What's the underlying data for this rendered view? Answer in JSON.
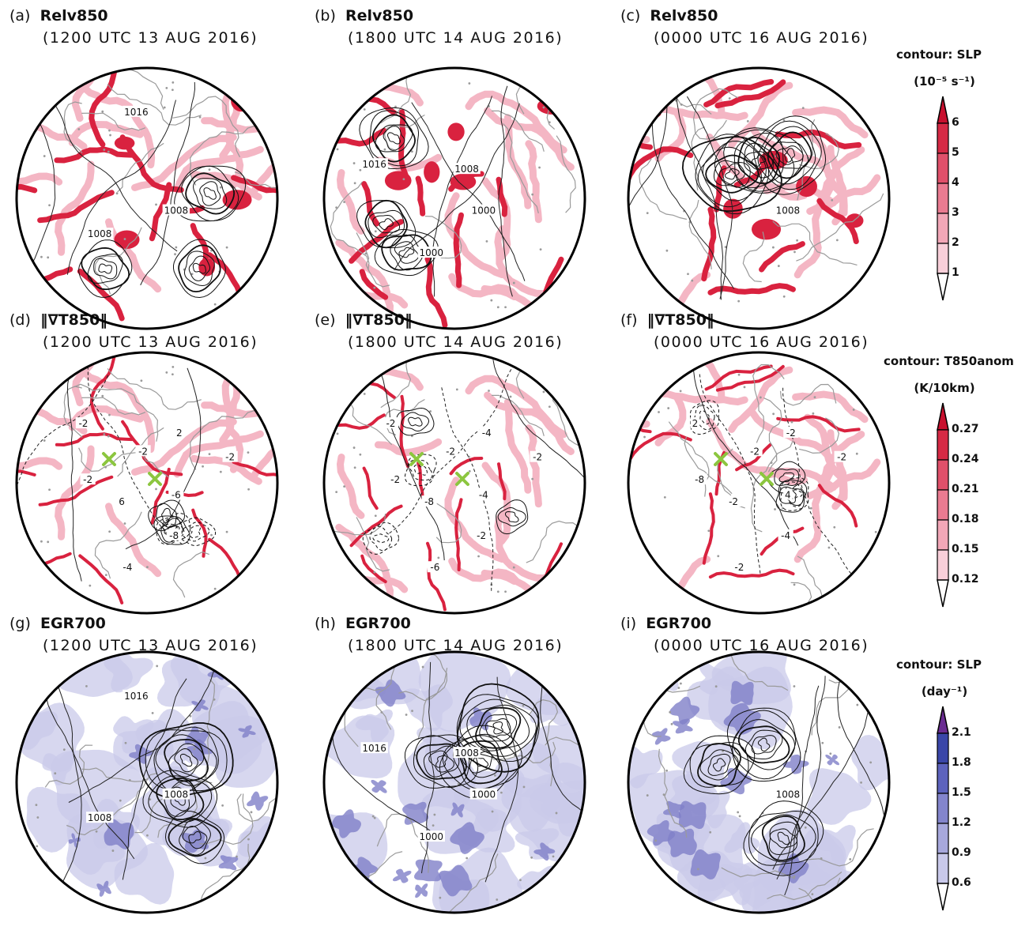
{
  "panels": [
    {
      "letter": "(a)",
      "variable": "Relv850",
      "time": "(1200 UTC 13 AUG 2016)",
      "kind": "relv",
      "labels": [
        "1008",
        "1008",
        "1016"
      ]
    },
    {
      "letter": "(b)",
      "variable": "Relv850",
      "time": "(1800 UTC 14 AUG 2016)",
      "kind": "relv",
      "labels": [
        "1000",
        "1000",
        "1016",
        "1008"
      ]
    },
    {
      "letter": "(c)",
      "variable": "Relv850",
      "time": "(0000 UTC 16 AUG 2016)",
      "kind": "relv",
      "labels": [
        "1008"
      ]
    },
    {
      "letter": "(d)",
      "variable": "‖∇T850‖",
      "time": "(1200 UTC 13 AUG 2016)",
      "kind": "grad",
      "labels": [
        "-6",
        "-8",
        "-4",
        "6",
        "-2",
        "-2",
        "-2",
        "2",
        "-2"
      ]
    },
    {
      "letter": "(e)",
      "variable": "‖∇T850‖",
      "time": "(1800 UTC 14 AUG 2016)",
      "kind": "grad",
      "labels": [
        "-4",
        "-2",
        "-6",
        "-8",
        "-2",
        "-2",
        "-2",
        "-4",
        "-2"
      ]
    },
    {
      "letter": "(f)",
      "variable": "‖∇T850‖",
      "time": "(0000 UTC 16 AUG 2016)",
      "kind": "grad",
      "labels": [
        "4",
        "-4",
        "-2",
        "-2",
        "-8",
        "2",
        "-2",
        "-2",
        "-2"
      ]
    },
    {
      "letter": "(g)",
      "variable": "EGR700",
      "time": "(1200 UTC 13 AUG 2016)",
      "kind": "egr",
      "labels": [
        "1008",
        "1008",
        "1016"
      ]
    },
    {
      "letter": "(h)",
      "variable": "EGR700",
      "time": "(1800 UTC 14 AUG 2016)",
      "kind": "egr",
      "labels": [
        "1000",
        "1000",
        "1016",
        "1008"
      ]
    },
    {
      "letter": "(i)",
      "variable": "EGR700",
      "time": "(0000 UTC 16 AUG 2016)",
      "kind": "egr",
      "labels": [
        "1008"
      ]
    }
  ],
  "colorbars": [
    {
      "contour_label": "contour: SLP",
      "unit": "(10⁻⁵ s⁻¹)",
      "ticks": [
        "6",
        "5",
        "4",
        "3",
        "2",
        "1"
      ],
      "colors": [
        "#c8102e",
        "#d62a45",
        "#e0506a",
        "#ea7b91",
        "#f2a7b7",
        "#f8cfd9",
        "#fdeef2"
      ]
    },
    {
      "contour_label": "contour: T850anom",
      "unit": "(K/10km)",
      "ticks": [
        "0.27",
        "0.24",
        "0.21",
        "0.18",
        "0.15",
        "0.12"
      ],
      "colors": [
        "#c8102e",
        "#d62a45",
        "#e0506a",
        "#ea7b91",
        "#f2a7b7",
        "#f8cfd9",
        "#fdeef2"
      ]
    },
    {
      "contour_label": "contour: SLP",
      "unit": "(day⁻¹)",
      "ticks": [
        "2.1",
        "1.8",
        "1.5",
        "1.2",
        "0.9",
        "0.6"
      ],
      "colors": [
        "#6a2c91",
        "#3a46a8",
        "#5d63bd",
        "#8385cc",
        "#a7a8dc",
        "#c9c9ea",
        "#e8e8f6"
      ]
    }
  ],
  "chart_data": {
    "type": "heatmap",
    "description_rows": [
      "Relv850",
      "‖∇T850‖",
      "EGR700"
    ],
    "columns": [
      "(1200 UTC 13 AUG 2016)",
      "(1800 UTC 14 AUG 2016)",
      "(0000 UTC 16 AUG 2016)"
    ],
    "contour_fields": [
      "SLP",
      "T850anom",
      "SLP"
    ],
    "color_scales": [
      {
        "unit": "(10⁻⁵ s⁻¹)",
        "levels": [
          1,
          2,
          3,
          4,
          5,
          6
        ]
      },
      {
        "unit": "(K/10km)",
        "levels": [
          0.12,
          0.15,
          0.18,
          0.21,
          0.24,
          0.27
        ]
      },
      {
        "unit": "(day⁻¹)",
        "levels": [
          0.6,
          0.9,
          1.2,
          1.5,
          1.8,
          2.1
        ]
      }
    ],
    "colors": {
      "relv": "#d9223f",
      "grad": "#d9223f",
      "egr": "#5b5fbf",
      "coast": "#9a9a9a",
      "marker": "#8cc63f"
    }
  }
}
